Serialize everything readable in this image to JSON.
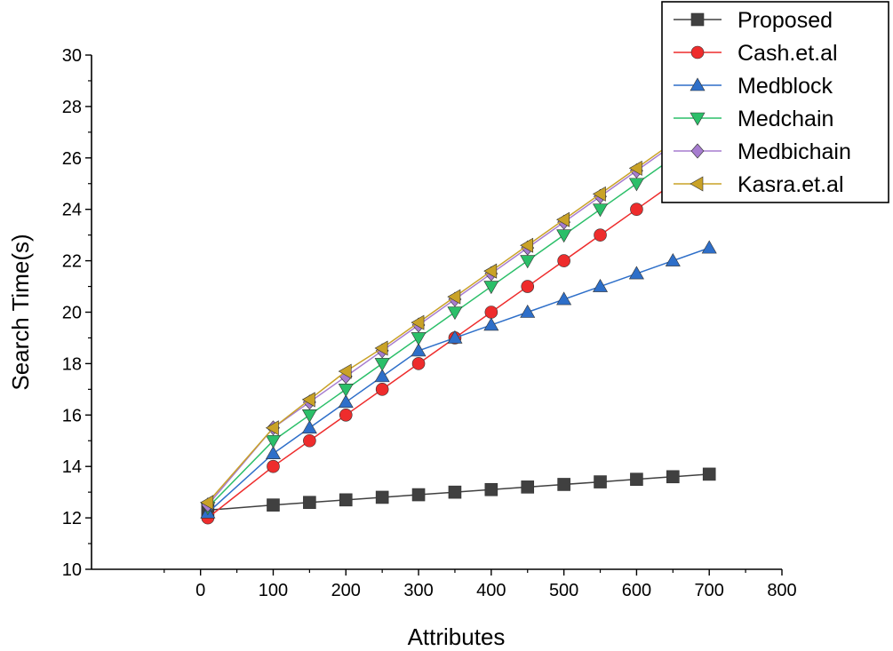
{
  "chart_data": {
    "type": "line",
    "title": "",
    "xlabel": "Attributes",
    "ylabel": "Search Time(s)",
    "xlim": [
      -150,
      800
    ],
    "ylim": [
      10,
      30
    ],
    "x_ticks": [
      0,
      100,
      200,
      300,
      400,
      500,
      600,
      700,
      800
    ],
    "y_ticks": [
      10,
      12,
      14,
      16,
      18,
      20,
      22,
      24,
      26,
      28,
      30
    ],
    "grid": false,
    "legend_position": "top-right",
    "x": [
      10,
      100,
      150,
      200,
      250,
      300,
      350,
      400,
      450,
      500,
      550,
      600,
      650,
      700
    ],
    "series": [
      {
        "name": "Proposed",
        "color": "#404040",
        "marker": "square",
        "values": [
          12.3,
          12.5,
          12.6,
          12.7,
          12.8,
          12.9,
          13.0,
          13.1,
          13.2,
          13.3,
          13.4,
          13.5,
          13.6,
          13.7
        ]
      },
      {
        "name": "Cash.et.al",
        "color": "#ee2c2c",
        "marker": "circle",
        "values": [
          12.0,
          14.0,
          15.0,
          16.0,
          17.0,
          18.0,
          19.0,
          20.0,
          21.0,
          22.0,
          23.0,
          24.0,
          25.0,
          26.0
        ]
      },
      {
        "name": "Medblock",
        "color": "#2e6fc9",
        "marker": "triangle-up",
        "values": [
          12.2,
          14.5,
          15.5,
          16.5,
          17.5,
          18.5,
          19.0,
          19.5,
          20.0,
          20.5,
          21.0,
          21.5,
          22.0,
          22.5
        ]
      },
      {
        "name": "Medchain",
        "color": "#2bbf69",
        "marker": "triangle-down",
        "values": [
          12.4,
          15.0,
          16.0,
          17.0,
          18.0,
          19.0,
          20.0,
          21.0,
          22.0,
          23.0,
          24.0,
          25.0,
          26.0,
          27.0
        ]
      },
      {
        "name": "Medbichain",
        "color": "#a67ccf",
        "marker": "diamond",
        "values": [
          12.5,
          15.5,
          16.5,
          17.5,
          18.5,
          19.5,
          20.5,
          21.5,
          22.5,
          23.5,
          24.5,
          25.5,
          26.5,
          27.5
        ]
      },
      {
        "name": "Kasra.et.al",
        "color": "#c9a227",
        "marker": "triangle-left",
        "values": [
          12.6,
          15.5,
          16.6,
          17.7,
          18.6,
          19.6,
          20.6,
          21.6,
          22.6,
          23.6,
          24.6,
          25.6,
          26.6,
          27.6
        ]
      }
    ]
  }
}
